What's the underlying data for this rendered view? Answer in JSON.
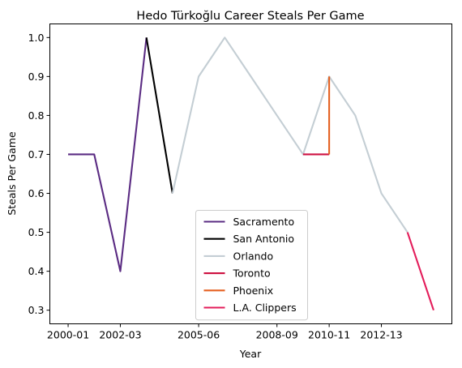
{
  "chart_data": {
    "type": "line",
    "title": "Hedo Türkoğlu Career Steals Per Game",
    "xlabel": "Year",
    "ylabel": "Steals Per Game",
    "x_ticks": [
      "2000-01",
      "2002-03",
      "2005-06",
      "2008-09",
      "2010-11",
      "2012-13"
    ],
    "y_ticks": [
      "0.3",
      "0.4",
      "0.5",
      "0.6",
      "0.7",
      "0.8",
      "0.9",
      "1.0"
    ],
    "ylim": [
      0.265,
      1.035
    ],
    "legend_position": "lower center",
    "grid": false,
    "series": [
      {
        "name": "Sacramento",
        "color": "#5b2c83",
        "points": [
          [
            "2000-01",
            0.7
          ],
          [
            "2001-02",
            0.7
          ],
          [
            "2002-03",
            0.4
          ],
          [
            "2003-04",
            1.0
          ]
        ]
      },
      {
        "name": "San Antonio",
        "color": "#000000",
        "points": [
          [
            "2003-04",
            1.0
          ],
          [
            "2004-05",
            0.6
          ]
        ]
      },
      {
        "name": "Orlando",
        "color": "#c4ced4",
        "points": [
          [
            "2004-05",
            0.6
          ],
          [
            "2005-06",
            0.9
          ],
          [
            "2006-07",
            1.0
          ],
          [
            "2007-08",
            0.9
          ],
          [
            "2008-09",
            0.8
          ],
          [
            "2009-10",
            0.7
          ],
          [
            "2010-11",
            0.9
          ],
          [
            "2011-12",
            0.8
          ],
          [
            "2012-13",
            0.6
          ],
          [
            "2013-14",
            0.5
          ]
        ]
      },
      {
        "name": "Toronto",
        "color": "#ce1141",
        "points": [
          [
            "2009-10",
            0.7
          ],
          [
            "2010-11",
            0.7
          ]
        ]
      },
      {
        "name": "Phoenix",
        "color": "#e56020",
        "points": [
          [
            "2010-11",
            0.7
          ],
          [
            "2010-11",
            0.9
          ]
        ]
      },
      {
        "name": "L.A. Clippers",
        "color": "#e31c5a",
        "points": [
          [
            "2013-14",
            0.5
          ],
          [
            "2014-15",
            0.3
          ]
        ]
      }
    ]
  }
}
